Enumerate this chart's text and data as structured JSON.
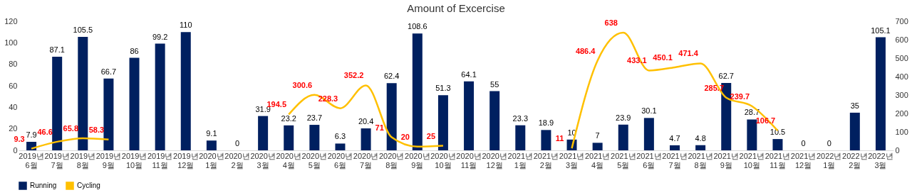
{
  "chart_data": {
    "type": "bar",
    "title": "Amount of Excercise",
    "categories": [
      "2019년 6월",
      "2019년 7월",
      "2019년 8월",
      "2019년 9월",
      "2019년 10월",
      "2019년 11월",
      "2019년 12월",
      "2020년 1월",
      "2020년 2월",
      "2020년 3월",
      "2020년 4월",
      "2020년 5월",
      "2020년 6월",
      "2020년 7월",
      "2020년 8월",
      "2020년 9월",
      "2020년 10월",
      "2020년 11월",
      "2020년 12월",
      "2021년 1월",
      "2021년 2월",
      "2021년 3월",
      "2021년 4월",
      "2021년 5월",
      "2021년 6월",
      "2021년 7월",
      "2021년 8월",
      "2021년 9월",
      "2021년 10월",
      "2021년 11월",
      "2021년 12월",
      "2022년 1월",
      "2022년 2월",
      "2022년 3월"
    ],
    "series": [
      {
        "name": "Running",
        "color": "#002060",
        "values": [
          7.9,
          87.1,
          105.5,
          66.7,
          86,
          99.2,
          110,
          9.1,
          0,
          31.9,
          23.2,
          23.7,
          6.3,
          20.4,
          62.4,
          108.6,
          51.3,
          64.1,
          55,
          23.3,
          18.9,
          10,
          7,
          23.9,
          30.1,
          4.7,
          4.8,
          62.7,
          28.7,
          10.5,
          0,
          0,
          35,
          105.1
        ]
      },
      {
        "name": "Cycling",
        "type": "line",
        "axis": "y2",
        "color": "#ffc000",
        "values": [
          9.3,
          46.6,
          65.8,
          58.3,
          null,
          null,
          null,
          null,
          null,
          null,
          194.5,
          300.6,
          228.3,
          352.2,
          71,
          20,
          25,
          null,
          null,
          null,
          null,
          11,
          486.4,
          638,
          433.1,
          450.1,
          471.4,
          285.7,
          239.7,
          106.7,
          null,
          null,
          null,
          null
        ]
      }
    ],
    "ylim": [
      0,
      120
    ],
    "yticks": [
      0,
      20,
      40,
      60,
      80,
      100,
      120
    ],
    "y2lim": [
      0,
      700
    ],
    "y2ticks": [
      0,
      100,
      200,
      300,
      400,
      500,
      600,
      700
    ],
    "data_labels": true,
    "grid": false,
    "legend": "bottom"
  }
}
